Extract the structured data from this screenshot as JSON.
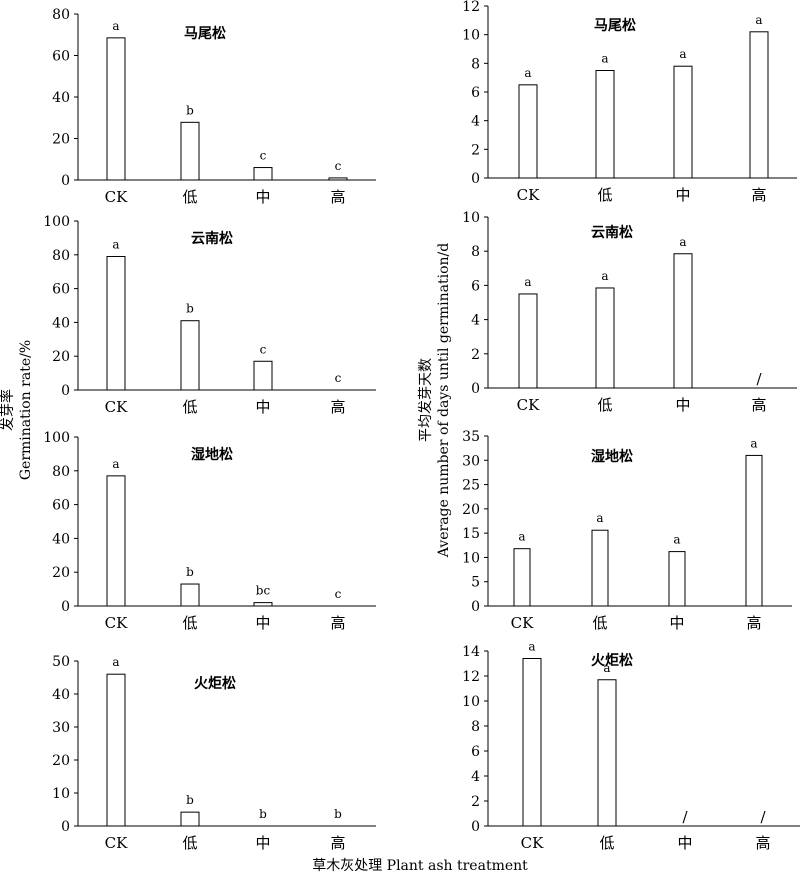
{
  "figure": {
    "left_ylabel_cn": "发芽率",
    "left_ylabel_en": "Germination rate/%",
    "right_ylabel_cn": "平均发芽天数",
    "right_ylabel_en": "Average number of days until germination/d",
    "xlabel": "草木灰处理 Plant ash treatment"
  },
  "chart_data": [
    {
      "type": "bar",
      "title": "马尾松",
      "categories": [
        "CK",
        "低",
        "中",
        "高"
      ],
      "values": [
        68.5,
        27.8,
        6,
        1
      ],
      "labels": [
        "a",
        "b",
        "c",
        "c"
      ],
      "ylim": [
        0,
        80
      ],
      "yticks": [
        0,
        20,
        40,
        60,
        80
      ]
    },
    {
      "type": "bar",
      "title": "马尾松",
      "categories": [
        "CK",
        "低",
        "中",
        "高"
      ],
      "values": [
        6.5,
        7.5,
        7.8,
        10.2
      ],
      "labels": [
        "a",
        "a",
        "a",
        "a"
      ],
      "ylim": [
        0,
        12
      ],
      "yticks": [
        0,
        2,
        4,
        6,
        8,
        10,
        12
      ]
    },
    {
      "type": "bar",
      "title": "云南松",
      "categories": [
        "CK",
        "低",
        "中",
        "高"
      ],
      "values": [
        79,
        41,
        17,
        0
      ],
      "labels": [
        "a",
        "b",
        "c",
        "c"
      ],
      "ylim": [
        0,
        100
      ],
      "yticks": [
        0,
        20,
        40,
        60,
        80,
        100
      ]
    },
    {
      "type": "bar",
      "title": "云南松",
      "categories": [
        "CK",
        "低",
        "中",
        "高"
      ],
      "values": [
        5.5,
        5.85,
        7.85,
        null
      ],
      "labels": [
        "a",
        "a",
        "a",
        "/"
      ],
      "ylim": [
        0,
        10
      ],
      "yticks": [
        0,
        2,
        4,
        6,
        8,
        10
      ]
    },
    {
      "type": "bar",
      "title": "湿地松",
      "categories": [
        "CK",
        "低",
        "中",
        "高"
      ],
      "values": [
        77,
        13,
        2,
        0
      ],
      "labels": [
        "a",
        "b",
        "bc",
        "c"
      ],
      "ylim": [
        0,
        100
      ],
      "yticks": [
        0,
        20,
        40,
        60,
        80,
        100
      ]
    },
    {
      "type": "bar",
      "title": "湿地松",
      "categories": [
        "CK",
        "低",
        "中",
        "高"
      ],
      "values": [
        11.8,
        15.6,
        11.2,
        31
      ],
      "labels": [
        "a",
        "a",
        "a",
        "a"
      ],
      "ylim": [
        0,
        35
      ],
      "yticks": [
        0,
        5,
        10,
        15,
        20,
        25,
        30,
        35
      ]
    },
    {
      "type": "bar",
      "title": "火炬松",
      "categories": [
        "CK",
        "低",
        "中",
        "高"
      ],
      "values": [
        46,
        4.2,
        0,
        0
      ],
      "labels": [
        "a",
        "b",
        "b",
        "b"
      ],
      "ylim": [
        0,
        50
      ],
      "yticks": [
        0,
        10,
        20,
        30,
        40,
        50
      ]
    },
    {
      "type": "bar",
      "title": "火炬松",
      "categories": [
        "CK",
        "低",
        "中",
        "高"
      ],
      "values": [
        13.4,
        11.7,
        null,
        null
      ],
      "labels": [
        "a",
        "a",
        "/",
        "/"
      ],
      "ylim": [
        0,
        14
      ],
      "yticks": [
        0,
        2,
        4,
        6,
        8,
        10,
        12,
        14
      ]
    }
  ]
}
